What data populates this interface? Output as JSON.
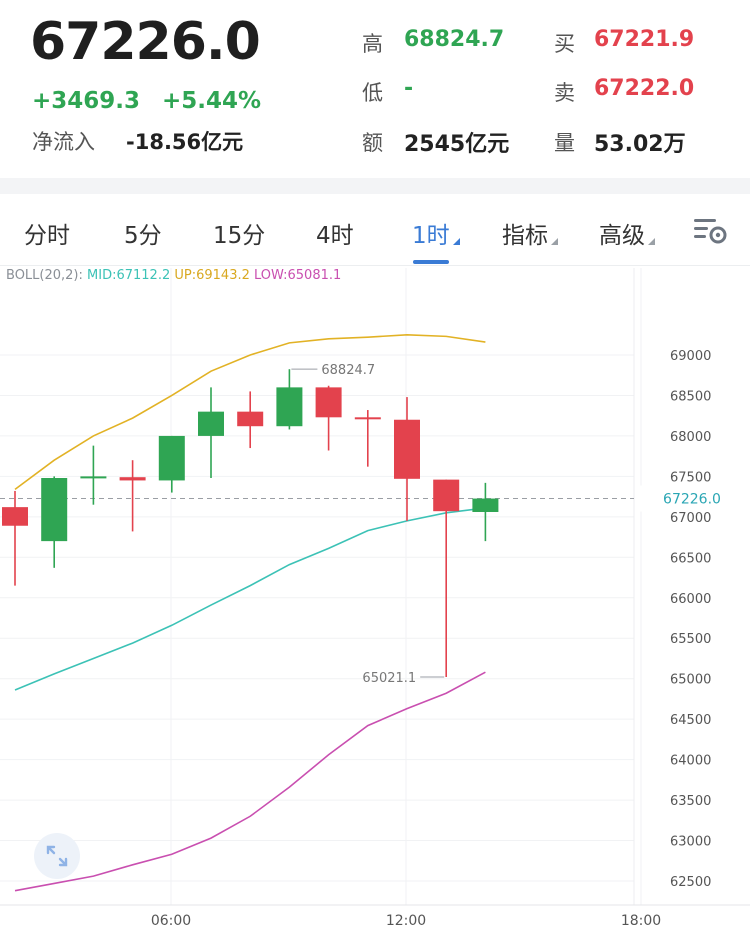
{
  "quote": {
    "last_price": "67226.0",
    "change_abs": "+3469.3",
    "change_pct": "+5.44%",
    "net_inflow_label": "净流入",
    "net_inflow_value": "-18.56亿元",
    "high_label": "高",
    "high_value": "68824.7",
    "low_label": "低",
    "low_value": "-",
    "amount_label": "额",
    "amount_value": "2545亿元",
    "bid_label": "买",
    "bid_value": "67221.9",
    "ask_label": "卖",
    "ask_value": "67222.0",
    "volume_label": "量",
    "volume_value": "53.02万"
  },
  "tabs": [
    {
      "label": "分时"
    },
    {
      "label": "5分"
    },
    {
      "label": "15分"
    },
    {
      "label": "4时"
    },
    {
      "label": "1时",
      "active": true
    },
    {
      "label": "指标"
    },
    {
      "label": "高级"
    }
  ],
  "indicator": {
    "name": "BOLL(20,2):",
    "mid": "MID:67112.2",
    "up": "UP:69143.2",
    "low": "LOW:65081.1"
  },
  "colors": {
    "up_candle": "#2fa553",
    "down_candle": "#e3424d",
    "boll_mid": "#3cc2b6",
    "boll_up": "#e2b225",
    "boll_low": "#c94fb0",
    "active_tab": "#3a7bd5"
  },
  "icons": [
    "chart-settings-icon",
    "expand-icon"
  ],
  "chart_data": {
    "type": "candlestick",
    "y_ticks": [
      "69000",
      "68500",
      "68000",
      "67500",
      "67000",
      "66500",
      "66000",
      "65500",
      "65000",
      "64500",
      "64000",
      "63500",
      "63000",
      "62500"
    ],
    "x_ticks": [
      "06:00",
      "12:00",
      "18:00"
    ],
    "last_price_label": "67226.0",
    "last_price": 67226.0,
    "max_annotation": "68824.7",
    "max_value": 68824.7,
    "min_annotation": "65021.1",
    "min_value": 65021.1,
    "ylim": [
      62300,
      69500
    ],
    "candles": [
      {
        "o": 67120,
        "h": 67320,
        "l": 66150,
        "c": 66890
      },
      {
        "o": 66700,
        "h": 67500,
        "l": 66370,
        "c": 67480
      },
      {
        "o": 67480,
        "h": 67880,
        "l": 67150,
        "c": 67500
      },
      {
        "o": 67490,
        "h": 67700,
        "l": 66820,
        "c": 67450
      },
      {
        "o": 67450,
        "h": 68000,
        "l": 67300,
        "c": 68000
      },
      {
        "o": 68000,
        "h": 68600,
        "l": 67480,
        "c": 68300
      },
      {
        "o": 68300,
        "h": 68550,
        "l": 67850,
        "c": 68120
      },
      {
        "o": 68120,
        "h": 68824.7,
        "l": 68080,
        "c": 68600
      },
      {
        "o": 68600,
        "h": 68620,
        "l": 67820,
        "c": 68230
      },
      {
        "o": 68230,
        "h": 68320,
        "l": 67620,
        "c": 68220
      },
      {
        "o": 68200,
        "h": 68480,
        "l": 66950,
        "c": 67470
      },
      {
        "o": 67460,
        "h": 67460,
        "l": 65021.1,
        "c": 67070
      },
      {
        "o": 67060,
        "h": 67420,
        "l": 66700,
        "c": 67226
      }
    ],
    "boll_up": [
      67340,
      67700,
      68000,
      68220,
      68500,
      68800,
      69000,
      69150,
      69200,
      69220,
      69250,
      69230,
      69160
    ],
    "boll_mid": [
      64860,
      65060,
      65250,
      65440,
      65660,
      65910,
      66150,
      66410,
      66610,
      66830,
      66950,
      67050,
      67110
    ],
    "boll_low": [
      62380,
      62470,
      62560,
      62700,
      62830,
      63030,
      63300,
      63660,
      64060,
      64420,
      64630,
      64820,
      65080
    ]
  }
}
